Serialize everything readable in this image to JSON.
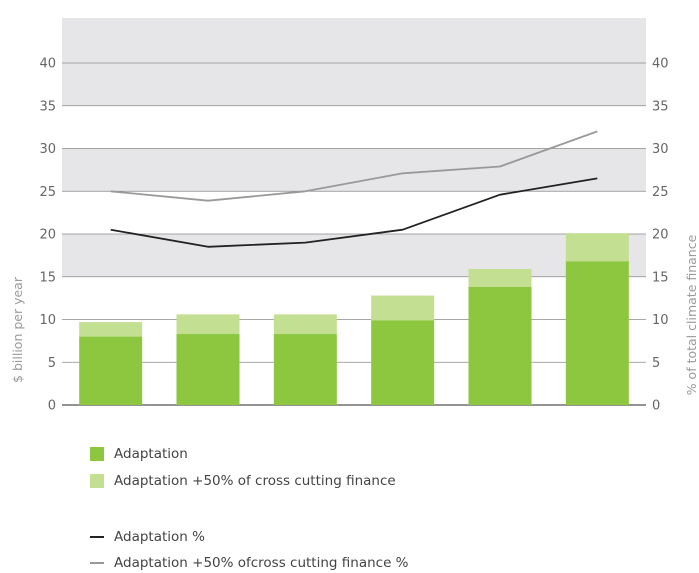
{
  "chart_data": {
    "type": "bar",
    "categories": [
      "",
      "",
      "",
      "",
      "",
      ""
    ],
    "series": [
      {
        "name": "Adaptation",
        "kind": "bar",
        "axis": "left",
        "color": "#8dc63f",
        "values": [
          8.0,
          8.3,
          8.3,
          9.9,
          13.8,
          16.8
        ]
      },
      {
        "name": "Adaptation +50% of cross cutting finance",
        "kind": "bar-stack-total",
        "axis": "left",
        "color": "#c3df92",
        "values": [
          9.7,
          10.6,
          10.6,
          12.8,
          15.9,
          20.1
        ]
      },
      {
        "name": "Adaptation %",
        "kind": "line",
        "axis": "right",
        "color": "#222222",
        "values": [
          20.5,
          18.5,
          19.0,
          20.5,
          24.6,
          26.5
        ]
      },
      {
        "name": "Adaptation +50% ofcross cutting finance %",
        "kind": "line",
        "axis": "right",
        "color": "#999999",
        "values": [
          25.0,
          23.9,
          25.0,
          27.1,
          27.9,
          32.0
        ]
      }
    ],
    "ylabel": "$ billion per year",
    "y2label": "% of total climate finance",
    "ylim": [
      0,
      40
    ],
    "y2lim": [
      0,
      40
    ],
    "yticks": [
      "0",
      "5",
      "10",
      "15",
      "20",
      "25",
      "30",
      "35",
      "40"
    ],
    "y2ticks": [
      "0",
      "5",
      "10",
      "15",
      "20",
      "25",
      "30",
      "35",
      "40"
    ],
    "grid": "alternating horizontal bands",
    "band_color": "#e6e6e8",
    "legend_position": "bottom-left"
  },
  "legend": {
    "items": [
      {
        "label": "Adaptation",
        "type": "box",
        "color": "#8dc63f"
      },
      {
        "label": "Adaptation +50% of cross cutting finance",
        "type": "box",
        "color": "#c3df92"
      },
      {
        "label": "Adaptation %",
        "type": "line",
        "color": "#222222"
      },
      {
        "label": "Adaptation +50% ofcross cutting finance %",
        "type": "line",
        "color": "#999999"
      }
    ]
  }
}
